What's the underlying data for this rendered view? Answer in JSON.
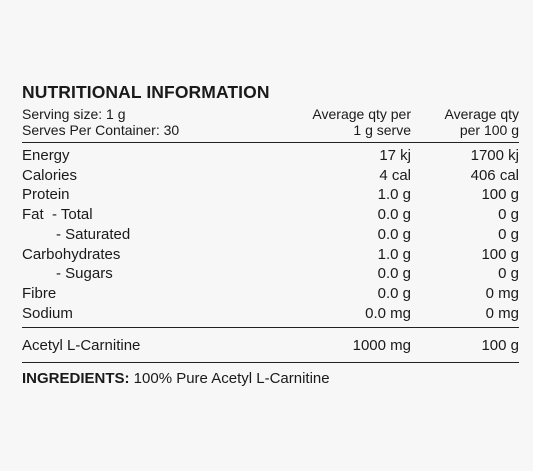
{
  "title": "NUTRITIONAL INFORMATION",
  "header": {
    "serving_size": "Serving size: 1 g",
    "serves_per_container": "Serves Per Container: 30",
    "col1_line1": "Average qty per",
    "col1_line2": "1 g serve",
    "col2_line1": "Average qty",
    "col2_line2": "per 100 g"
  },
  "rows": [
    {
      "label": "Energy",
      "per_serve": "17 kj",
      "per_100g": "1700 kj"
    },
    {
      "label": "Calories",
      "per_serve": "4 cal",
      "per_100g": "406 cal"
    },
    {
      "label": "Protein",
      "per_serve": "1.0 g",
      "per_100g": "100 g"
    },
    {
      "label": "Fat  - Total",
      "per_serve": "0.0 g",
      "per_100g": "0 g"
    },
    {
      "label": "- Saturated",
      "per_serve": "0.0 g",
      "per_100g": "0 g"
    },
    {
      "label": "Carbohydrates",
      "per_serve": "1.0 g",
      "per_100g": "100 g"
    },
    {
      "label": "- Sugars",
      "per_serve": "0.0 g",
      "per_100g": "0 g"
    },
    {
      "label": "Fibre",
      "per_serve": "0.0 g",
      "per_100g": "0 mg"
    },
    {
      "label": "Sodium",
      "per_serve": "0.0 mg",
      "per_100g": "0 mg"
    }
  ],
  "acetyl": {
    "label": "Acetyl L-Carnitine",
    "per_serve": "1000 mg",
    "per_100g": "100 g"
  },
  "ingredients": {
    "label": "INGREDIENTS:",
    "text": " 100% Pure Acetyl L-Carnitine"
  }
}
